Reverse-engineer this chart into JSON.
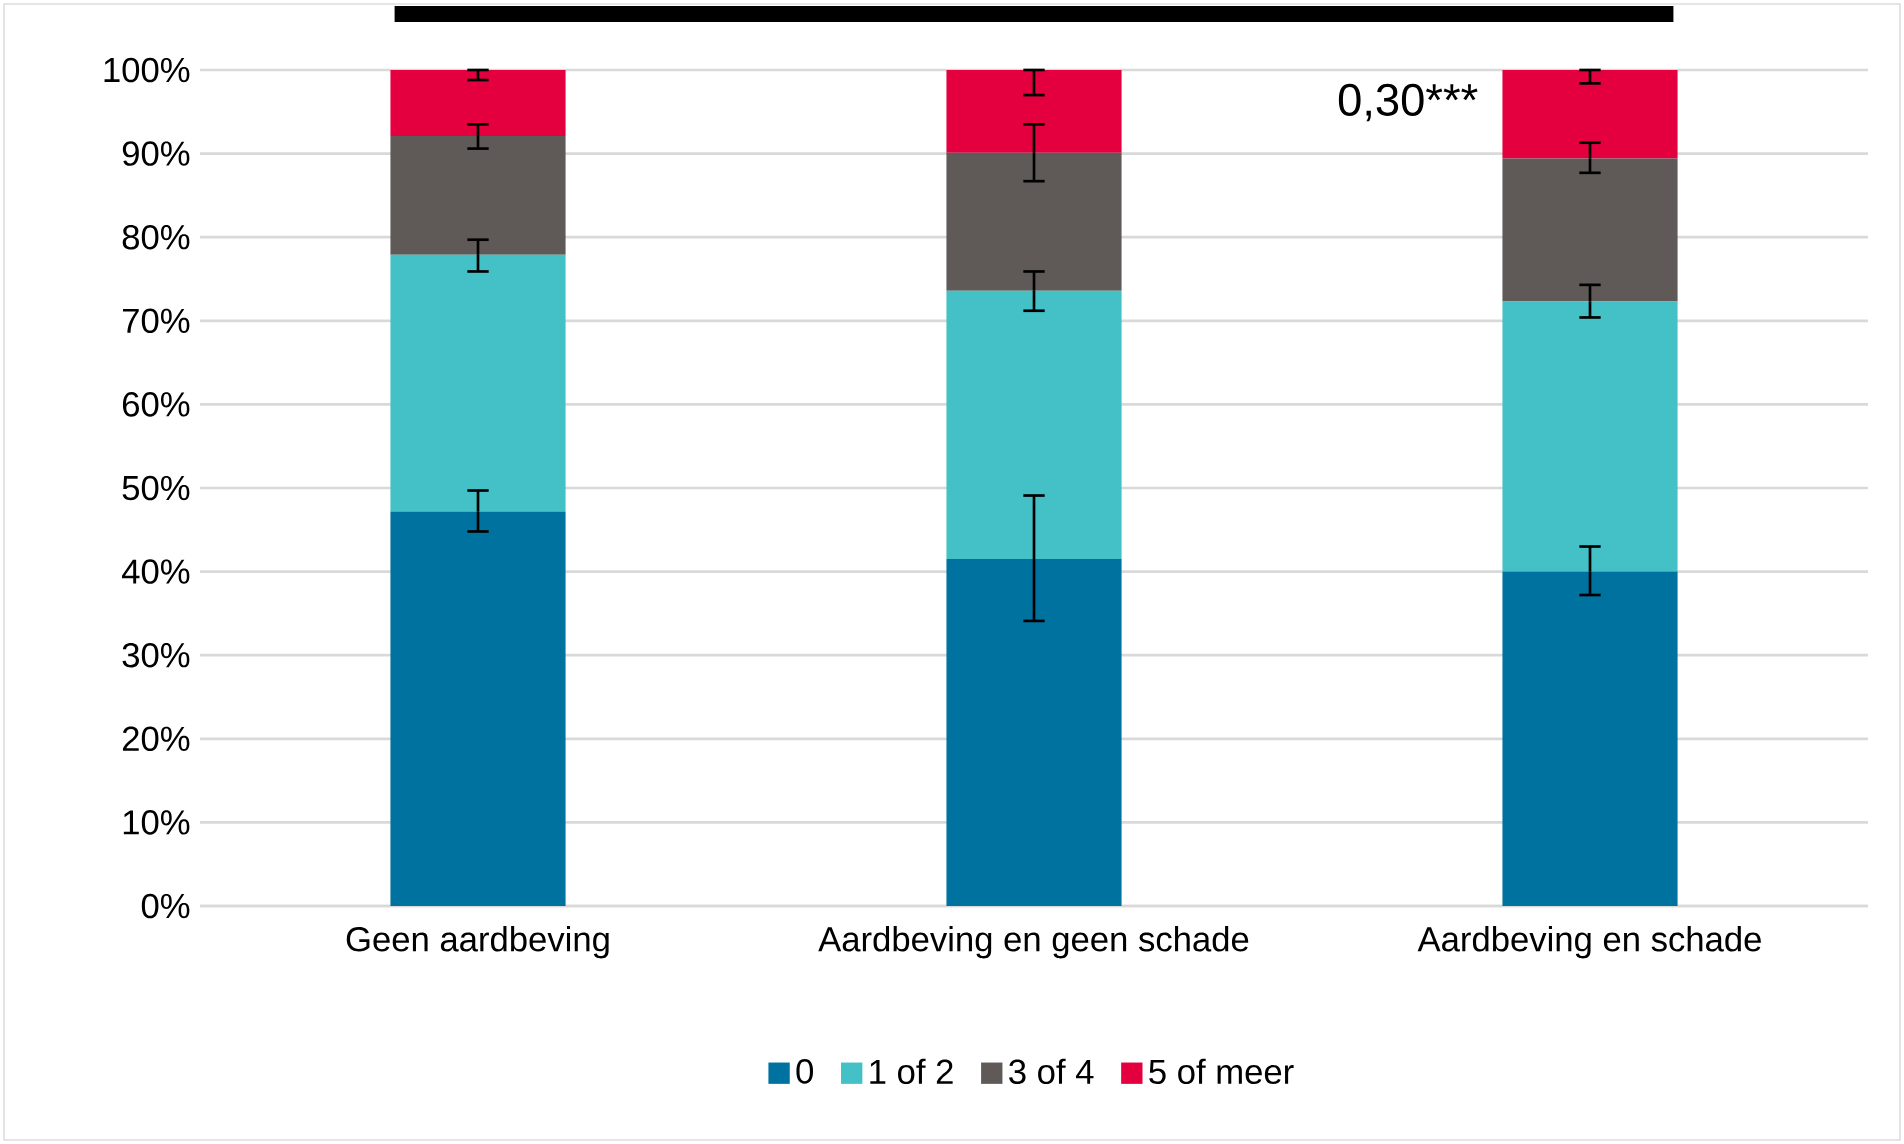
{
  "chart_data": {
    "type": "bar",
    "stacked": true,
    "categories": [
      "Geen aardbeving",
      "Aardbeving en geen schade",
      "Aardbeving en schade"
    ],
    "series": [
      {
        "name": "0",
        "color": "#0072a0",
        "values": [
          47.2,
          41.5,
          40.0
        ],
        "errors": [
          [
            44.8,
            49.7
          ],
          [
            34.1,
            49.1
          ],
          [
            37.2,
            43.0
          ]
        ]
      },
      {
        "name": "1 of 2",
        "color": "#43c1c6",
        "values": [
          30.7,
          32.1,
          32.3
        ],
        "errors": [
          [
            75.9,
            79.7
          ],
          [
            71.2,
            75.9
          ],
          [
            70.4,
            74.3
          ]
        ]
      },
      {
        "name": "3 of 4",
        "color": "#5f5a57",
        "values": [
          14.2,
          16.5,
          17.1
        ],
        "errors": [
          [
            90.6,
            93.5
          ],
          [
            86.7,
            93.5
          ],
          [
            87.7,
            91.3
          ]
        ]
      },
      {
        "name": "5 of meer",
        "color": "#e4003f",
        "values": [
          7.9,
          9.9,
          10.6
        ],
        "errors": [
          [
            98.8,
            100
          ],
          [
            97.0,
            100
          ],
          [
            98.4,
            100
          ]
        ]
      }
    ],
    "ylim": [
      0,
      100
    ],
    "yticks": [
      {
        "value": 0,
        "label": "0%"
      },
      {
        "value": 10,
        "label": "10%"
      },
      {
        "value": 20,
        "label": "20%"
      },
      {
        "value": 30,
        "label": "30%"
      },
      {
        "value": 40,
        "label": "40%"
      },
      {
        "value": 50,
        "label": "50%"
      },
      {
        "value": 60,
        "label": "60%"
      },
      {
        "value": 70,
        "label": "70%"
      },
      {
        "value": 80,
        "label": "80%"
      },
      {
        "value": 90,
        "label": "90%"
      },
      {
        "value": 100,
        "label": "100%"
      }
    ],
    "grid": "y",
    "legend": "bottom",
    "annotations": [
      "0,30***"
    ]
  }
}
